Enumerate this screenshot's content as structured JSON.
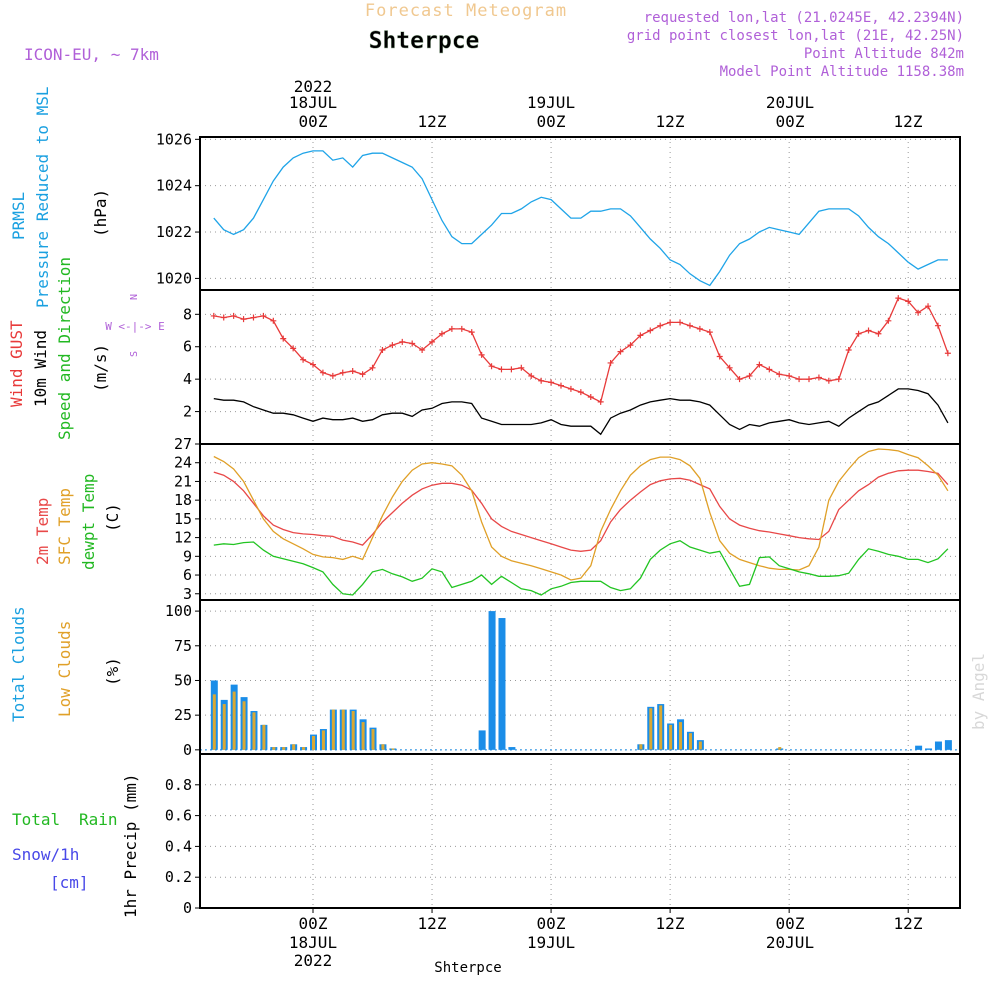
{
  "header": {
    "forecast_title": "Forecast Meteogram",
    "location": "Shterpce",
    "model": "ICON-EU, ~ 7km",
    "requested": "requested lon,lat (21.0245E, 42.2394N)",
    "grid_point": "grid point closest lon,lat (21E, 42.25N)",
    "point_alt": "Point Altitude 842m",
    "model_alt": "Model Point Altitude 1158.38m"
  },
  "top_axis": {
    "year": "2022",
    "days": [
      {
        "label": "18JUL",
        "t": 0
      },
      {
        "label": "19JUL",
        "t": 24
      },
      {
        "label": "20JUL",
        "t": 48
      }
    ],
    "ticks": [
      {
        "label": "00Z",
        "t": 0
      },
      {
        "label": "12Z",
        "t": 12
      },
      {
        "label": "00Z",
        "t": 24
      },
      {
        "label": "12Z",
        "t": 36
      },
      {
        "label": "00Z",
        "t": 48
      },
      {
        "label": "12Z",
        "t": 60
      }
    ]
  },
  "bottom_axis": {
    "year": "2022",
    "days": [
      {
        "label": "18JUL",
        "t": 0
      },
      {
        "label": "19JUL",
        "t": 24
      },
      {
        "label": "20JUL",
        "t": 48
      }
    ],
    "ticks": [
      {
        "label": "00Z",
        "t": 0
      },
      {
        "label": "12Z",
        "t": 12
      },
      {
        "label": "00Z",
        "t": 24
      },
      {
        "label": "12Z",
        "t": 36
      },
      {
        "label": "00Z",
        "t": 48
      },
      {
        "label": "12Z",
        "t": 60
      }
    ],
    "location": "Shterpce"
  },
  "watermark": "by Angel",
  "panel_labels": {
    "p1": {
      "a": "PRMSL",
      "b": "Pressure Reduced to MSL",
      "unit": "(hPa)"
    },
    "p2": {
      "a": "Wind GUST",
      "b": "10m Wind",
      "c": "Speed and Direction",
      "unit": "(m/s)",
      "compass_ns": "N",
      "compass_we": "W <-|-> E",
      "compass_s": "S"
    },
    "p3": {
      "a": "2m Temp",
      "b": "SFC Temp",
      "c": "dewpt Temp",
      "unit": "(C)"
    },
    "p4": {
      "a": "Total Clouds",
      "b": "Low Clouds",
      "unit": "(%)"
    },
    "p5": {
      "a": "Total",
      "b": "Rain",
      "c": "Snow/1h",
      "d": "[cm]",
      "unit": "1hr Precip (mm)"
    }
  },
  "colors": {
    "pressure": "#1fa4e8",
    "gust": "#e83a3a",
    "wind10m": "#000000",
    "temp2m": "#e84848",
    "sfc": "#e0a028",
    "dewpt": "#22c422",
    "total_clouds": "#1a8de8",
    "low_clouds": "#d8a834",
    "label_purple": "#b060d8",
    "label_blue": "#1aa0e0",
    "label_green": "#22b822",
    "label_snow": "#4848e8"
  },
  "chart_data": [
    {
      "type": "line",
      "panel": "pressure",
      "ylabel": "(hPa)",
      "ylim": [
        1019.5,
        1026.1
      ],
      "yticks": [
        1020,
        1022,
        1024,
        1026
      ],
      "x": [
        -10,
        -9,
        -8,
        -7,
        -6,
        -5,
        -4,
        -3,
        -2,
        -1,
        0,
        1,
        2,
        3,
        4,
        5,
        6,
        7,
        8,
        9,
        10,
        11,
        12,
        13,
        14,
        15,
        16,
        17,
        18,
        19,
        20,
        21,
        22,
        23,
        24,
        25,
        26,
        27,
        28,
        29,
        30,
        31,
        32,
        33,
        34,
        35,
        36,
        37,
        38,
        39,
        40,
        41,
        42,
        43,
        44,
        45,
        46,
        47,
        48,
        49,
        50,
        51,
        52,
        53,
        54,
        55,
        56,
        57,
        58,
        59,
        60,
        61,
        62,
        63,
        64
      ],
      "series": [
        {
          "name": "PRMSL",
          "values": [
            1022.6,
            1022.1,
            1021.9,
            1022.1,
            1022.6,
            1023.4,
            1024.2,
            1024.8,
            1025.2,
            1025.4,
            1025.5,
            1025.5,
            1025.1,
            1025.2,
            1024.8,
            1025.3,
            1025.4,
            1025.4,
            1025.2,
            1025.0,
            1024.8,
            1024.3,
            1023.4,
            1022.5,
            1021.8,
            1021.5,
            1021.5,
            1021.9,
            1022.3,
            1022.8,
            1022.8,
            1023.0,
            1023.3,
            1023.5,
            1023.4,
            1023.0,
            1022.6,
            1022.6,
            1022.9,
            1022.9,
            1023.0,
            1023.0,
            1022.7,
            1022.2,
            1021.7,
            1021.3,
            1020.8,
            1020.6,
            1020.2,
            1019.9,
            1019.7,
            1020.3,
            1021.0,
            1021.5,
            1021.7,
            1022.0,
            1022.2,
            1022.1,
            1022.0,
            1021.9,
            1022.4,
            1022.9,
            1023.0,
            1023.0,
            1023.0,
            1022.7,
            1022.2,
            1021.8,
            1021.5,
            1021.1,
            1020.7,
            1020.4,
            1020.6,
            1020.8,
            1020.8
          ]
        }
      ]
    },
    {
      "type": "line",
      "panel": "wind",
      "ylabel": "(m/s)",
      "ylim": [
        0,
        9.5
      ],
      "yticks": [
        2,
        4,
        6,
        8
      ],
      "x": [
        -10,
        -9,
        -8,
        -7,
        -6,
        -5,
        -4,
        -3,
        -2,
        -1,
        0,
        1,
        2,
        3,
        4,
        5,
        6,
        7,
        8,
        9,
        10,
        11,
        12,
        13,
        14,
        15,
        16,
        17,
        18,
        19,
        20,
        21,
        22,
        23,
        24,
        25,
        26,
        27,
        28,
        29,
        30,
        31,
        32,
        33,
        34,
        35,
        36,
        37,
        38,
        39,
        40,
        41,
        42,
        43,
        44,
        45,
        46,
        47,
        48,
        49,
        50,
        51,
        52,
        53,
        54,
        55,
        56,
        57,
        58,
        59,
        60,
        61,
        62,
        63,
        64
      ],
      "series": [
        {
          "name": "Wind GUST",
          "values": [
            7.9,
            7.8,
            7.9,
            7.7,
            7.8,
            7.9,
            7.6,
            6.5,
            5.9,
            5.2,
            4.9,
            4.4,
            4.2,
            4.4,
            4.5,
            4.3,
            4.7,
            5.8,
            6.1,
            6.3,
            6.2,
            5.8,
            6.3,
            6.8,
            7.1,
            7.1,
            6.9,
            5.5,
            4.8,
            4.6,
            4.6,
            4.7,
            4.2,
            3.9,
            3.8,
            3.6,
            3.4,
            3.2,
            2.9,
            2.6,
            5.0,
            5.7,
            6.1,
            6.7,
            7.0,
            7.3,
            7.5,
            7.5,
            7.3,
            7.1,
            6.9,
            5.4,
            4.7,
            4.0,
            4.2,
            4.9,
            4.6,
            4.3,
            4.2,
            4.0,
            4.0,
            4.1,
            3.9,
            4.0,
            5.8,
            6.8,
            7.0,
            6.8,
            7.6,
            9.0,
            8.8,
            8.1,
            8.5,
            7.3,
            5.6
          ]
        },
        {
          "name": "10m Wind",
          "values": [
            2.8,
            2.7,
            2.7,
            2.6,
            2.3,
            2.1,
            1.9,
            1.9,
            1.8,
            1.6,
            1.4,
            1.6,
            1.5,
            1.5,
            1.6,
            1.4,
            1.5,
            1.8,
            1.9,
            1.9,
            1.7,
            2.1,
            2.2,
            2.5,
            2.6,
            2.6,
            2.5,
            1.6,
            1.4,
            1.2,
            1.2,
            1.2,
            1.2,
            1.3,
            1.5,
            1.2,
            1.1,
            1.1,
            1.1,
            0.6,
            1.6,
            1.9,
            2.1,
            2.4,
            2.6,
            2.7,
            2.8,
            2.7,
            2.7,
            2.6,
            2.4,
            1.8,
            1.2,
            0.9,
            1.2,
            1.1,
            1.3,
            1.4,
            1.5,
            1.3,
            1.2,
            1.3,
            1.4,
            1.1,
            1.6,
            2.0,
            2.4,
            2.6,
            3.0,
            3.4,
            3.4,
            3.3,
            3.1,
            2.4,
            1.3
          ]
        }
      ]
    },
    {
      "type": "line",
      "panel": "temperature",
      "ylabel": "(C)",
      "ylim": [
        2,
        27
      ],
      "yticks": [
        3,
        6,
        9,
        12,
        15,
        18,
        21,
        24,
        27
      ],
      "x": [
        -10,
        -9,
        -8,
        -7,
        -6,
        -5,
        -4,
        -3,
        -2,
        -1,
        0,
        1,
        2,
        3,
        4,
        5,
        6,
        7,
        8,
        9,
        10,
        11,
        12,
        13,
        14,
        15,
        16,
        17,
        18,
        19,
        20,
        21,
        22,
        23,
        24,
        25,
        26,
        27,
        28,
        29,
        30,
        31,
        32,
        33,
        34,
        35,
        36,
        37,
        38,
        39,
        40,
        41,
        42,
        43,
        44,
        45,
        46,
        47,
        48,
        49,
        50,
        51,
        52,
        53,
        54,
        55,
        56,
        57,
        58,
        59,
        60,
        61,
        62,
        63,
        64
      ],
      "series": [
        {
          "name": "2m Temp",
          "values": [
            22.5,
            22.0,
            21.0,
            19.5,
            17.5,
            15.5,
            14.0,
            13.3,
            12.8,
            12.6,
            12.5,
            12.3,
            12.2,
            11.6,
            11.3,
            10.8,
            12.5,
            14.5,
            16.0,
            17.5,
            18.8,
            19.8,
            20.4,
            20.7,
            20.7,
            20.4,
            19.6,
            17.5,
            15.0,
            13.8,
            13.0,
            12.5,
            12.0,
            11.5,
            11.0,
            10.5,
            10.0,
            9.8,
            10.0,
            11.5,
            14.5,
            16.5,
            18.0,
            19.3,
            20.5,
            21.1,
            21.4,
            21.5,
            21.2,
            20.5,
            19.8,
            17.0,
            15.0,
            14.0,
            13.5,
            13.1,
            12.9,
            12.6,
            12.3,
            12.0,
            11.8,
            11.7,
            13.0,
            16.5,
            18.0,
            19.5,
            20.5,
            21.7,
            22.3,
            22.7,
            22.8,
            22.8,
            22.6,
            22.3,
            20.5
          ]
        },
        {
          "name": "SFC Temp",
          "values": [
            25.0,
            24.2,
            23.0,
            21.0,
            18.0,
            15.0,
            13.0,
            11.8,
            11.0,
            10.2,
            9.3,
            8.9,
            8.8,
            8.5,
            9.0,
            8.5,
            12.0,
            15.5,
            18.5,
            21.0,
            22.8,
            23.8,
            24.0,
            23.8,
            23.5,
            22.0,
            19.5,
            14.5,
            10.5,
            9.0,
            8.3,
            7.9,
            7.5,
            7.0,
            6.5,
            6.0,
            5.2,
            5.5,
            7.5,
            13.0,
            16.5,
            19.5,
            22.0,
            23.5,
            24.5,
            24.9,
            24.9,
            24.5,
            23.5,
            21.5,
            16.0,
            11.5,
            9.5,
            8.5,
            8.0,
            7.5,
            7.1,
            6.9,
            6.9,
            6.8,
            7.5,
            10.5,
            18.0,
            21.0,
            23.0,
            24.8,
            25.8,
            26.2,
            26.1,
            25.9,
            25.3,
            24.8,
            23.5,
            22.0,
            19.5
          ]
        },
        {
          "name": "dewpt Temp",
          "values": [
            10.8,
            11.0,
            10.9,
            11.2,
            11.3,
            10.0,
            9.0,
            8.6,
            8.2,
            7.8,
            7.2,
            6.5,
            4.5,
            3.0,
            2.8,
            4.5,
            6.5,
            6.9,
            6.2,
            5.7,
            5.0,
            5.5,
            7.0,
            6.5,
            4.0,
            4.5,
            5.0,
            6.0,
            4.5,
            5.8,
            4.8,
            3.8,
            3.5,
            2.8,
            3.8,
            4.2,
            4.8,
            5.0,
            5.0,
            5.0,
            4.0,
            3.5,
            3.8,
            5.5,
            8.5,
            10.0,
            11.0,
            11.5,
            10.5,
            10.0,
            9.5,
            9.8,
            7.0,
            4.2,
            4.5,
            8.8,
            8.9,
            7.5,
            7.0,
            6.5,
            6.2,
            5.8,
            5.8,
            5.9,
            6.3,
            8.5,
            10.2,
            9.8,
            9.3,
            9.0,
            8.5,
            8.5,
            8.0,
            8.6,
            10.2
          ]
        }
      ]
    },
    {
      "type": "bar",
      "panel": "clouds",
      "ylabel": "(%)",
      "ylim": [
        -3,
        108
      ],
      "yticks": [
        0,
        25,
        50,
        75,
        100
      ],
      "x": [
        -10,
        -9,
        -8,
        -7,
        -6,
        -5,
        -4,
        -3,
        -2,
        -1,
        0,
        1,
        2,
        3,
        4,
        5,
        6,
        7,
        8,
        9,
        10,
        11,
        12,
        13,
        14,
        15,
        16,
        17,
        18,
        19,
        20,
        21,
        22,
        23,
        24,
        25,
        26,
        27,
        28,
        29,
        30,
        31,
        32,
        33,
        34,
        35,
        36,
        37,
        38,
        39,
        40,
        41,
        42,
        43,
        44,
        45,
        46,
        47,
        48,
        49,
        50,
        51,
        52,
        53,
        54,
        55,
        56,
        57,
        58,
        59,
        60,
        61,
        62,
        63,
        64
      ],
      "series": [
        {
          "name": "Total Clouds",
          "values": [
            50,
            36,
            47,
            38,
            28,
            18,
            2,
            2,
            4,
            2,
            11,
            15,
            29,
            29,
            29,
            22,
            16,
            4,
            1,
            0,
            0,
            0,
            0,
            0,
            0,
            0,
            0,
            14,
            100,
            95,
            2,
            0,
            0,
            0,
            0,
            0,
            0,
            0,
            0,
            0,
            0,
            0,
            0,
            4,
            31,
            33,
            19,
            22,
            13,
            7,
            0,
            0,
            0,
            0,
            0,
            0,
            0,
            1,
            0,
            0,
            0,
            0,
            0,
            0,
            0,
            0,
            0,
            0,
            0,
            0,
            0,
            3,
            1,
            6,
            7
          ]
        },
        {
          "name": "Low Clouds",
          "values": [
            40,
            33,
            42,
            35,
            27,
            18,
            2,
            2,
            4,
            2,
            10,
            14,
            29,
            29,
            28,
            20,
            15,
            4,
            1,
            0,
            0,
            0,
            0,
            0,
            0,
            0,
            0,
            0,
            0,
            0,
            0,
            0,
            0,
            0,
            0,
            0,
            0,
            0,
            0,
            0,
            0,
            0,
            0,
            4,
            30,
            32,
            18,
            20,
            12,
            6,
            0,
            0,
            0,
            0,
            0,
            0,
            0,
            2,
            0,
            0,
            0,
            0,
            0,
            0,
            0,
            0,
            0,
            0,
            0,
            0,
            0,
            0,
            0,
            0,
            0
          ]
        }
      ]
    },
    {
      "type": "line",
      "panel": "precip",
      "ylabel": "1hr Precip (mm)",
      "ylim": [
        0,
        1.0
      ],
      "yticks": [
        0,
        0.2,
        0.4,
        0.6,
        0.8
      ],
      "series": [
        {
          "name": "Total Rain",
          "values": [
            0
          ]
        }
      ]
    }
  ]
}
